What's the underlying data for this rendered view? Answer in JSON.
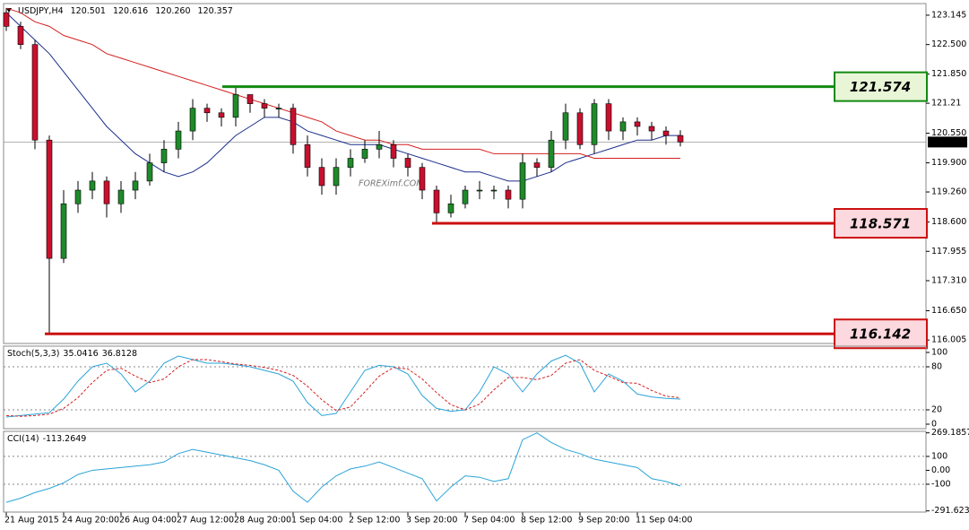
{
  "chart_data": [
    {
      "type": "candlestick",
      "header": "USDJPY,H4",
      "quote": [
        120.501,
        120.616,
        {
          "value": 120.26,
          "label": "120.260"
        },
        120.357
      ],
      "watermark": "FOREXimf.COM",
      "categories": [
        "21 Aug 2015",
        null,
        null,
        null,
        "24 Aug 20:00",
        null,
        null,
        null,
        "26 Aug 04:00",
        null,
        null,
        null,
        "27 Aug 12:00",
        null,
        null,
        null,
        "28 Aug 20:00",
        null,
        null,
        null,
        "1 Sep 04:00",
        null,
        null,
        null,
        "2 Sep 12:00",
        null,
        null,
        null,
        "3 Sep 20:00",
        null,
        null,
        null,
        "7 Sep 04:00",
        null,
        null,
        null,
        "8 Sep 12:00",
        null,
        null,
        null,
        "9 Sep 20:00",
        null,
        null,
        null,
        "11 Sep 04:00",
        null,
        null,
        null
      ],
      "open": [
        123.2,
        122.9,
        122.5,
        120.4,
        117.8,
        119.0,
        119.3,
        119.5,
        119.0,
        119.3,
        119.5,
        119.9,
        120.2,
        120.6,
        121.1,
        121.0,
        120.9,
        121.4,
        121.2,
        121.1,
        121.1,
        120.3,
        119.8,
        119.4,
        119.8,
        120.0,
        120.2,
        120.3,
        120.0,
        119.8,
        119.3,
        118.8,
        119.0,
        119.3,
        119.3,
        119.3,
        119.1,
        119.9,
        119.8,
        120.4,
        121.0,
        120.3,
        121.2,
        120.6,
        120.8,
        120.7,
        120.6,
        120.501
      ],
      "high": [
        123.3,
        123.0,
        122.6,
        120.5,
        119.3,
        119.5,
        119.7,
        119.6,
        119.5,
        119.7,
        120.1,
        120.4,
        120.8,
        121.3,
        121.2,
        121.1,
        121.574,
        121.4,
        121.3,
        121.2,
        121.2,
        120.5,
        120.0,
        120.0,
        120.2,
        120.4,
        120.6,
        120.4,
        120.1,
        119.9,
        119.4,
        119.2,
        119.4,
        119.5,
        119.4,
        119.4,
        120.1,
        120.0,
        120.6,
        121.2,
        121.1,
        121.3,
        121.3,
        120.9,
        120.9,
        120.8,
        120.7,
        120.616
      ],
      "low": [
        122.8,
        122.4,
        120.2,
        116.142,
        117.7,
        118.8,
        119.1,
        118.7,
        118.8,
        119.1,
        119.4,
        119.7,
        120.0,
        120.4,
        120.8,
        120.7,
        120.7,
        121.0,
        120.9,
        120.9,
        120.1,
        119.6,
        119.2,
        119.2,
        119.6,
        119.9,
        120.0,
        119.8,
        119.6,
        119.1,
        118.571,
        118.7,
        118.9,
        119.1,
        119.1,
        118.9,
        118.9,
        119.6,
        119.7,
        120.2,
        120.2,
        120.1,
        120.4,
        120.4,
        120.5,
        120.4,
        120.3,
        120.26
      ],
      "close": [
        122.9,
        122.5,
        120.4,
        117.8,
        119.0,
        119.3,
        119.5,
        119.0,
        119.3,
        119.5,
        119.9,
        120.2,
        120.6,
        121.1,
        121.0,
        120.9,
        121.4,
        121.2,
        121.1,
        121.1,
        120.3,
        119.8,
        119.4,
        119.8,
        120.0,
        120.2,
        120.3,
        120.0,
        119.8,
        119.3,
        118.8,
        119.0,
        119.3,
        119.3,
        119.3,
        119.1,
        119.9,
        119.8,
        120.4,
        121.0,
        120.3,
        121.2,
        120.6,
        120.8,
        120.7,
        120.6,
        120.5,
        120.357
      ],
      "series": [
        {
          "color": "#1c2f8c",
          "values": [
            123.2,
            122.9,
            122.6,
            122.3,
            121.9,
            121.5,
            121.1,
            120.7,
            120.4,
            120.1,
            119.9,
            119.7,
            119.6,
            119.7,
            119.9,
            120.2,
            120.5,
            120.7,
            120.9,
            120.9,
            120.8,
            120.6,
            120.5,
            120.4,
            120.3,
            120.3,
            120.3,
            120.2,
            120.1,
            120.0,
            119.9,
            119.8,
            119.7,
            119.7,
            119.6,
            119.5,
            119.5,
            119.6,
            119.7,
            119.9,
            120.0,
            120.1,
            120.2,
            120.3,
            120.4,
            120.4,
            120.5,
            120.5
          ]
        },
        {
          "color": "#d42020",
          "values": [
            123.3,
            123.2,
            123.0,
            122.9,
            122.7,
            122.6,
            122.5,
            122.3,
            122.2,
            122.1,
            122.0,
            121.9,
            121.8,
            121.7,
            121.6,
            121.5,
            121.4,
            121.3,
            121.2,
            121.1,
            121.0,
            120.9,
            120.8,
            120.6,
            120.5,
            120.4,
            120.4,
            120.3,
            120.3,
            120.2,
            120.2,
            120.2,
            120.2,
            120.2,
            120.1,
            120.1,
            120.1,
            120.1,
            120.1,
            120.1,
            120.1,
            120.0,
            120.0,
            120.0,
            120.0,
            120.0,
            120.0,
            120.0
          ]
        }
      ],
      "levels": [
        {
          "value": 121.574,
          "color": "#128a12",
          "box": "#e8f5d6"
        },
        {
          "value": 118.571,
          "color": "#cc1010",
          "box": "#fbd9de"
        },
        {
          "value": 116.142,
          "color": "#cc1010",
          "box": "#fbd9de"
        }
      ],
      "ylim": [
        115.93,
        123.4
      ],
      "yticks": [
        123.145,
        {
          "value": 122.5,
          "label": "122.500"
        },
        {
          "value": 121.85,
          "label": "121.850"
        },
        121.21,
        {
          "value": 120.55,
          "label": "120.550"
        },
        {
          "value": 119.9,
          "label": "119.900"
        },
        {
          "value": 119.26,
          "label": "119.260"
        },
        {
          "value": 118.6,
          "label": "118.600"
        },
        117.955,
        {
          "value": 117.31,
          "label": "117.310"
        },
        {
          "value": 116.65,
          "label": "116.650"
        },
        116.005
      ]
    },
    {
      "type": "line",
      "title": "Stoch(5,3,3)",
      "title_values": [
        35.0416,
        36.8128
      ],
      "ylim": [
        -6.25,
        108.75
      ],
      "yticks": [
        100,
        80,
        20,
        0
      ],
      "levels": [
        80,
        20
      ],
      "series": [
        {
          "color": "#2aa3d8",
          "values": [
            10,
            12,
            14,
            16,
            35,
            60,
            80,
            85,
            70,
            45,
            60,
            85,
            95,
            90,
            85,
            85,
            83,
            80,
            75,
            70,
            60,
            30,
            12,
            15,
            45,
            75,
            82,
            80,
            70,
            40,
            22,
            18,
            20,
            45,
            80,
            70,
            45,
            70,
            88,
            96,
            85,
            45,
            70,
            60,
            42,
            38,
            36,
            35.04
          ]
        },
        {
          "color": "#d42020",
          "dash": true,
          "values": [
            12,
            11,
            12,
            14,
            22,
            37,
            58,
            75,
            78,
            67,
            58,
            63,
            80,
            90,
            90,
            87,
            84,
            82,
            79,
            75,
            68,
            53,
            34,
            19,
            24,
            45,
            67,
            79,
            77,
            63,
            44,
            27,
            20,
            28,
            48,
            65,
            65,
            62,
            68,
            85,
            90,
            75,
            67,
            58,
            57,
            47,
            39,
            36.81
          ]
        }
      ]
    },
    {
      "type": "line",
      "title": "CCI(14)",
      "title_values": [
        -113.2649
      ],
      "ylim": [
        -300,
        280
      ],
      "yticks": [
        269.1857,
        100,
        {
          "value": 0,
          "label": "0.00"
        },
        -100,
        -291.6235
      ],
      "levels": [
        100,
        -100
      ],
      "series": [
        {
          "color": "#2aa3d8",
          "values": [
            -230,
            -200,
            -160,
            -130,
            -90,
            -30,
            0,
            10,
            20,
            30,
            40,
            60,
            120,
            150,
            130,
            110,
            90,
            70,
            40,
            0,
            -150,
            -230,
            -120,
            -40,
            10,
            30,
            60,
            20,
            -20,
            -60,
            -220,
            -120,
            -40,
            -50,
            -80,
            -60,
            220,
            269,
            200,
            150,
            120,
            80,
            60,
            40,
            20,
            -60,
            -80,
            -113.26
          ]
        }
      ]
    }
  ]
}
